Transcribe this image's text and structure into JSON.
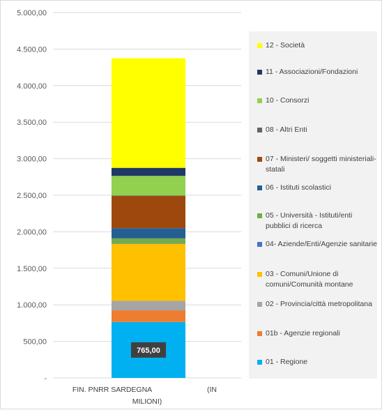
{
  "chart_data": {
    "type": "bar",
    "stacked": true,
    "categories": [
      "FIN. PNRR SARDEGNA          (IN MILIONI)"
    ],
    "yticks": [
      "-",
      "500,00",
      "1.000,00",
      "1.500,00",
      "2.000,00",
      "2.500,00",
      "3.000,00",
      "3.500,00",
      "4.000,00",
      "4.500,00",
      "5.000,00"
    ],
    "ylim": [
      0,
      5000
    ],
    "grid": true,
    "legend_position": "right",
    "series": [
      {
        "name": "01 - Regione",
        "values": [
          765
        ],
        "color": "#00b0f0",
        "data_label": "765,00"
      },
      {
        "name": "01b - Agenzie regionali",
        "values": [
          160
        ],
        "color": "#ed7d31"
      },
      {
        "name": "02 - Provincia/città metropolitana",
        "values": [
          130
        ],
        "color": "#a5a5a5"
      },
      {
        "name": "03 - Comuni/Unione di comuni/Comunità montane",
        "values": [
          780
        ],
        "color": "#ffc000"
      },
      {
        "name": "04- Aziende/Enti/Agenzie sanitarie",
        "values": [
          5
        ],
        "color": "#4472c4"
      },
      {
        "name": "05 - Università - Istituti/enti pubblici di ricerca",
        "values": [
          70
        ],
        "color": "#70ad47"
      },
      {
        "name": "06 - Istituti scolastici",
        "values": [
          140
        ],
        "color": "#255e91"
      },
      {
        "name": "07 - Ministeri/ soggetti ministeriali-statali",
        "values": [
          440
        ],
        "color": "#9e480e"
      },
      {
        "name": "08 - Altri Enti",
        "values": [
          5
        ],
        "color": "#636363"
      },
      {
        "name": "10 - Consorzi",
        "values": [
          270
        ],
        "color": "#92d050"
      },
      {
        "name": "11 - Associazioni/Fondazioni",
        "values": [
          110
        ],
        "color": "#203864"
      },
      {
        "name": "12 - Società",
        "values": [
          1500
        ],
        "color": "#ffff00"
      }
    ]
  }
}
